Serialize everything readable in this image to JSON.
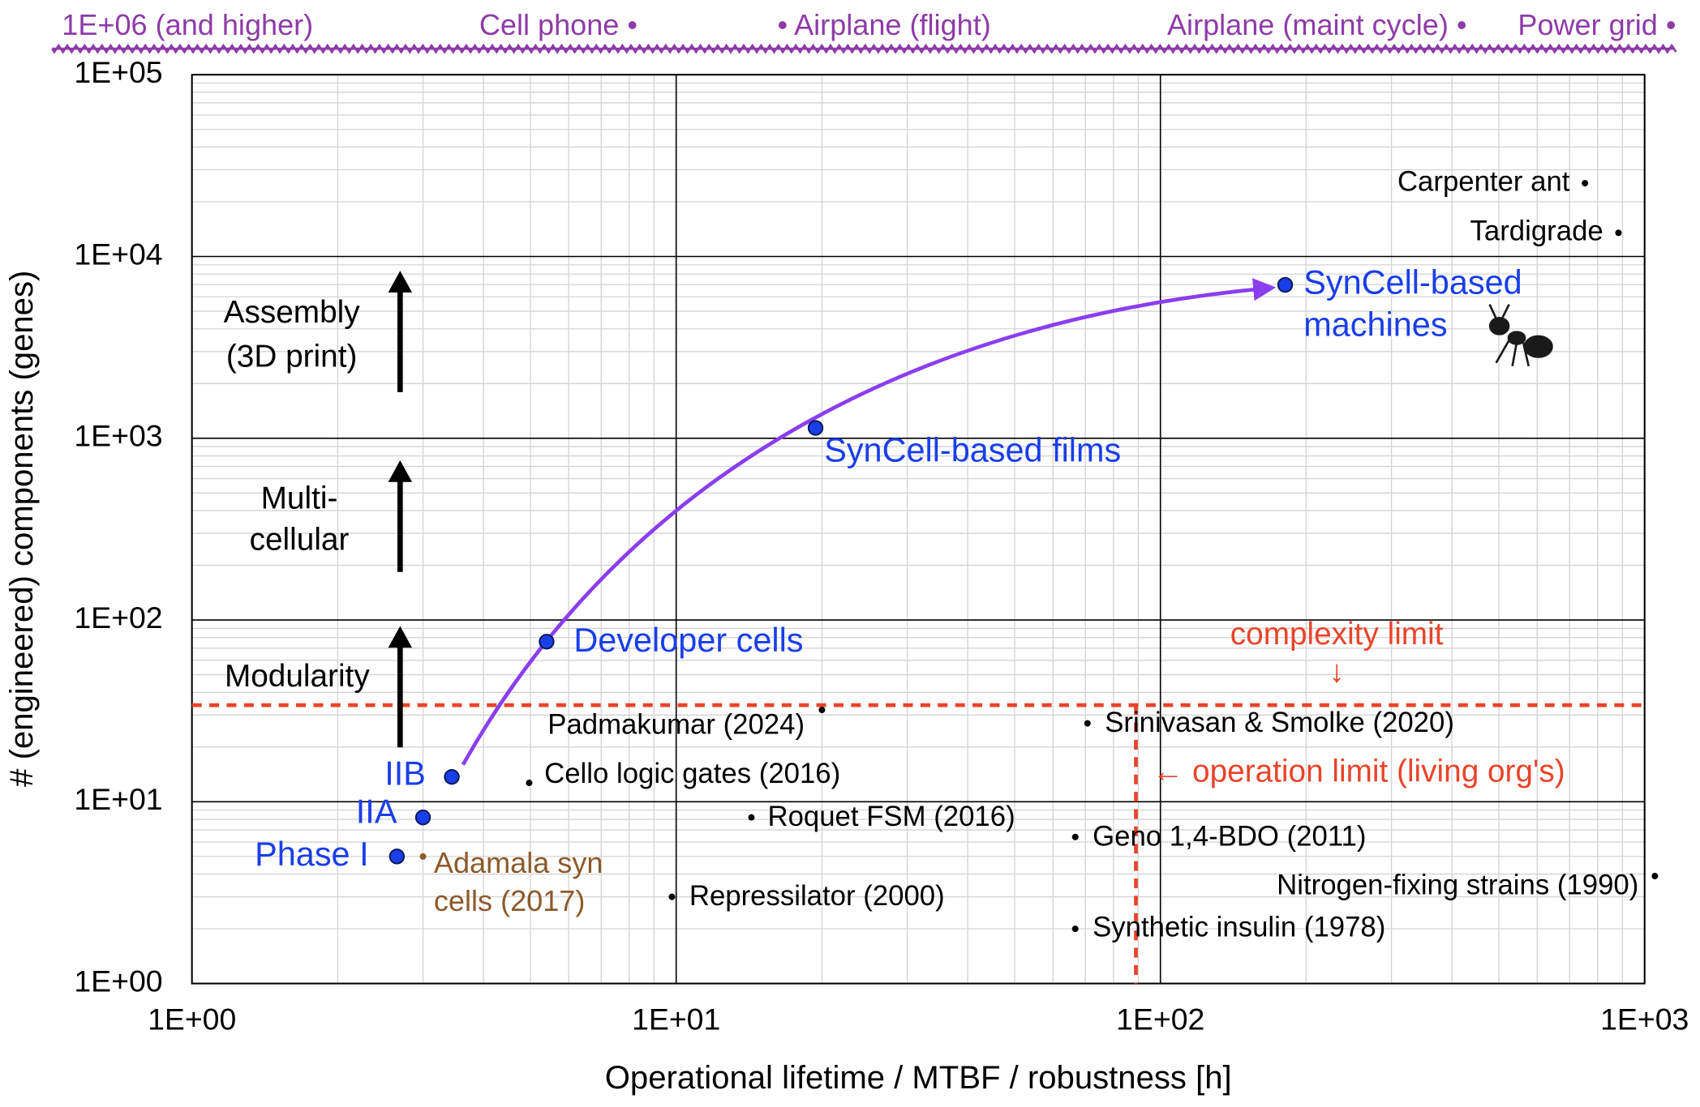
{
  "chart_data": {
    "type": "scatter",
    "x_label": "Operational lifetime / MTBF / robustness [h]",
    "y_label": "# (engineered) components (genes)",
    "xlim": [
      1,
      1000
    ],
    "ylim": [
      1,
      100000
    ],
    "x_log": true,
    "y_log": true,
    "grid": true,
    "minor_grid": true,
    "xticks": [
      {
        "value": 1,
        "label": "1E+00"
      },
      {
        "value": 10,
        "label": "1E+01"
      },
      {
        "value": 100,
        "label": "1E+02"
      },
      {
        "value": 1000,
        "label": "1E+03"
      }
    ],
    "yticks": [
      {
        "value": 1,
        "label": "1E+00"
      },
      {
        "value": 10,
        "label": "1E+01"
      },
      {
        "value": 100,
        "label": "1E+02"
      },
      {
        "value": 1000,
        "label": "1E+03"
      },
      {
        "value": 10000,
        "label": "1E+04"
      },
      {
        "value": 100000,
        "label": "1E+05"
      }
    ],
    "points": [
      {
        "label": [
          "Phase I"
        ],
        "x": 2.65,
        "y": 5,
        "color": "#1a3ee8",
        "style": "major"
      },
      {
        "label": [
          "IIA"
        ],
        "x": 3.0,
        "y": 8.2,
        "color": "#1a3ee8",
        "style": "major"
      },
      {
        "label": [
          "IIB"
        ],
        "x": 3.44,
        "y": 13.7,
        "color": "#1a3ee8",
        "style": "major"
      },
      {
        "label": [
          "Developer cells"
        ],
        "x": 5.4,
        "y": 76,
        "color": "#1a3ee8",
        "style": "major"
      },
      {
        "label": [
          "SynCell-based films"
        ],
        "x": 19.4,
        "y": 1140,
        "color": "#1a3ee8",
        "style": "major"
      },
      {
        "label": [
          "SynCell-based",
          "machines"
        ],
        "x": 181,
        "y": 6980,
        "color": "#1a3ee8",
        "style": "major"
      },
      {
        "label": [
          "Adamala syn",
          "cells (2017)"
        ],
        "x": 3.0,
        "y": 5,
        "color": "#8b5a2b",
        "style": "minor"
      },
      {
        "label": [
          "Cello logic gates (2016)"
        ],
        "x": 4.97,
        "y": 12.7,
        "color": "#000000",
        "style": "minor"
      },
      {
        "label": [
          "Padmakumar (2024)"
        ],
        "x": 20,
        "y": 32,
        "color": "#000000",
        "style": "minor"
      },
      {
        "label": [
          "Roquet FSM (2016)"
        ],
        "x": 14.3,
        "y": 8.2,
        "color": "#000000",
        "style": "minor"
      },
      {
        "label": [
          "Repressilator (2000)"
        ],
        "x": 9.8,
        "y": 3.0,
        "color": "#000000",
        "style": "minor"
      },
      {
        "label": [
          "Srinivasan & Smolke (2020)"
        ],
        "x": 70.7,
        "y": 27,
        "color": "#000000",
        "style": "minor"
      },
      {
        "label": [
          "Geno 1,4-BDO (2011)"
        ],
        "x": 66.7,
        "y": 6.4,
        "color": "#000000",
        "style": "minor"
      },
      {
        "label": [
          "Synthetic insulin (1978)"
        ],
        "x": 66.7,
        "y": 2.0,
        "color": "#000000",
        "style": "minor"
      },
      {
        "label": [
          "Nitrogen-fixing strains (1990)"
        ],
        "x": 1050,
        "y": 3.9,
        "color": "#000000",
        "style": "minor"
      },
      {
        "label": [
          "Carpenter ant"
        ],
        "x": 753,
        "y": 25300,
        "color": "#000000",
        "style": "minor"
      },
      {
        "label": [
          "Tardigrade"
        ],
        "x": 883,
        "y": 13500,
        "color": "#000000",
        "style": "minor"
      }
    ],
    "limits": {
      "color": "#e8442a",
      "complexity": {
        "value": 34,
        "label": "complexity limit",
        "arrow": "↓"
      },
      "operation": {
        "value": 89,
        "label": "← operation limit (living org's)"
      }
    },
    "stage_annotations": [
      {
        "label": [
          "Assembly",
          "(3D print)"
        ]
      },
      {
        "label": [
          "Multi-",
          "cellular"
        ]
      },
      {
        "label": [
          "Modularity"
        ]
      }
    ],
    "top_scale": {
      "color": "#8e3ba8",
      "labels": [
        "1E+06 (and higher)",
        "Cell phone •",
        "• Airplane (flight)",
        "Airplane (maint cycle) •",
        "Power grid •"
      ]
    }
  }
}
